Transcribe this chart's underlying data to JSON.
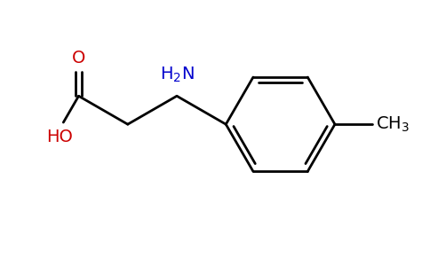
{
  "bg_color": "#ffffff",
  "line_color": "#000000",
  "nh2_color": "#0000cd",
  "o_color": "#cc0000",
  "ho_color": "#cc0000",
  "ch3_color": "#000000",
  "font_size": 14,
  "figsize": [
    4.84,
    3.0
  ],
  "dpi": 100
}
